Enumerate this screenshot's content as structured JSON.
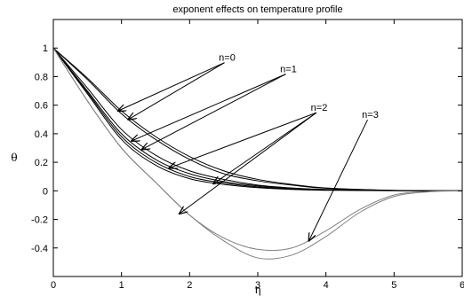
{
  "chart_data": {
    "type": "line",
    "title": "exponent effects on temperature profile",
    "xlabel": "η",
    "ylabel": "θ",
    "xlim": [
      0,
      6
    ],
    "ylim": [
      -0.6,
      1.2
    ],
    "xticks": [
      0,
      1,
      2,
      3,
      4,
      5,
      6
    ],
    "yticks": [
      -0.4,
      -0.2,
      0,
      0.2,
      0.4,
      0.6,
      0.8,
      1
    ],
    "grid": false,
    "series": [
      {
        "color": "#000000",
        "x": [
          0,
          0.5,
          1,
          1.5,
          2,
          2.5,
          3,
          3.5,
          4,
          5,
          6
        ],
        "y": [
          1,
          0.79,
          0.56,
          0.38,
          0.24,
          0.14,
          0.08,
          0.045,
          0.02,
          0.004,
          0
        ]
      },
      {
        "color": "#000000",
        "x": [
          0,
          0.5,
          1,
          1.5,
          2,
          2.5,
          3,
          3.5,
          4,
          5,
          6
        ],
        "y": [
          1,
          0.78,
          0.54,
          0.36,
          0.22,
          0.12,
          0.07,
          0.04,
          0.018,
          0.003,
          0
        ]
      },
      {
        "color": "#000000",
        "x": [
          0,
          0.5,
          1,
          1.5,
          2,
          2.5,
          3,
          3.5,
          4,
          5,
          6
        ],
        "y": [
          1,
          0.72,
          0.43,
          0.25,
          0.14,
          0.08,
          0.04,
          0.02,
          0.01,
          0.002,
          0
        ]
      },
      {
        "color": "#000000",
        "x": [
          0,
          0.5,
          1,
          1.5,
          2,
          2.5,
          3,
          3.5,
          4,
          5,
          6
        ],
        "y": [
          1,
          0.7,
          0.4,
          0.22,
          0.12,
          0.065,
          0.035,
          0.018,
          0.008,
          0.002,
          0
        ]
      },
      {
        "color": "#000000",
        "x": [
          0,
          0.5,
          1,
          1.5,
          2,
          2.5,
          3,
          3.5,
          4,
          5,
          6
        ],
        "y": [
          1,
          0.69,
          0.38,
          0.2,
          0.1,
          0.055,
          0.028,
          0.014,
          0.006,
          0.001,
          0
        ]
      },
      {
        "color": "#000000",
        "x": [
          0,
          0.5,
          1,
          1.5,
          2,
          2.5,
          3,
          3.5,
          4,
          5,
          6
        ],
        "y": [
          1,
          0.68,
          0.36,
          0.18,
          0.085,
          0.045,
          0.022,
          0.01,
          0.004,
          0.001,
          0
        ]
      },
      {
        "color": "#808080",
        "x": [
          0,
          0.5,
          1,
          1.5,
          2,
          2.5,
          3,
          3.5,
          4,
          4.5,
          5,
          5.5,
          6
        ],
        "y": [
          1,
          0.63,
          0.3,
          0.06,
          -0.17,
          -0.33,
          -0.41,
          -0.4,
          -0.28,
          -0.13,
          -0.03,
          -0.005,
          0
        ]
      },
      {
        "color": "#808080",
        "x": [
          0,
          0.5,
          1,
          1.5,
          2,
          2.5,
          3,
          3.5,
          4,
          4.5,
          5,
          5.5,
          6
        ],
        "y": [
          1,
          0.63,
          0.3,
          0.06,
          -0.17,
          -0.35,
          -0.47,
          -0.45,
          -0.32,
          -0.15,
          -0.04,
          -0.007,
          0
        ]
      }
    ],
    "annotations": [
      {
        "label": "n=0",
        "text_at": [
          2.55,
          0.91
        ],
        "arrows_to": [
          [
            0.95,
            0.56
          ],
          [
            1.1,
            0.5
          ]
        ]
      },
      {
        "label": "n=1",
        "text_at": [
          3.45,
          0.83
        ],
        "arrows_to": [
          [
            1.15,
            0.35
          ],
          [
            1.3,
            0.29
          ]
        ]
      },
      {
        "label": "n=2",
        "text_at": [
          3.9,
          0.56
        ],
        "arrows_to": [
          [
            1.7,
            0.16
          ],
          [
            1.85,
            -0.16
          ],
          [
            2.35,
            0.05
          ]
        ]
      },
      {
        "label": "n=3",
        "text_at": [
          4.65,
          0.51
        ],
        "arrows_to": [
          [
            3.75,
            -0.35
          ]
        ]
      }
    ]
  }
}
